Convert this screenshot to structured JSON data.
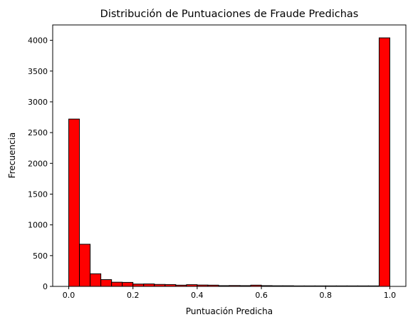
{
  "chart_data": {
    "type": "bar",
    "title": "Distribución de Puntuaciones de Fraude Predichas",
    "xlabel": "Puntuación Predicha",
    "ylabel": "Frecuencia",
    "xlim": [
      -0.05,
      1.05
    ],
    "ylim": [
      0,
      4250
    ],
    "x_ticks": [
      0.0,
      0.2,
      0.4,
      0.6,
      0.8,
      1.0
    ],
    "x_tick_labels": [
      "0.0",
      "0.2",
      "0.4",
      "0.6",
      "0.8",
      "1.0"
    ],
    "y_ticks": [
      0,
      500,
      1000,
      1500,
      2000,
      2500,
      3000,
      3500,
      4000
    ],
    "y_tick_labels": [
      "0",
      "500",
      "1000",
      "1500",
      "2000",
      "2500",
      "3000",
      "3500",
      "4000"
    ],
    "bin_edges": [
      0.0,
      0.0333,
      0.0667,
      0.1,
      0.1333,
      0.1667,
      0.2,
      0.2333,
      0.2667,
      0.3,
      0.3333,
      0.3667,
      0.4,
      0.4333,
      0.4667,
      0.5,
      0.5333,
      0.5667,
      0.6,
      0.6333,
      0.6667,
      0.7,
      0.7333,
      0.7667,
      0.8,
      0.8333,
      0.8667,
      0.9,
      0.9333,
      0.9667,
      1.0
    ],
    "values": [
      2720,
      685,
      205,
      110,
      68,
      65,
      38,
      40,
      32,
      30,
      20,
      28,
      22,
      20,
      12,
      14,
      12,
      20,
      12,
      10,
      10,
      8,
      8,
      8,
      8,
      8,
      8,
      8,
      8,
      4040
    ],
    "grid": false,
    "colors": {
      "bar_fill": "#ff0000",
      "bar_edge": "#000000",
      "axes": "#000000",
      "background": "#ffffff"
    }
  }
}
